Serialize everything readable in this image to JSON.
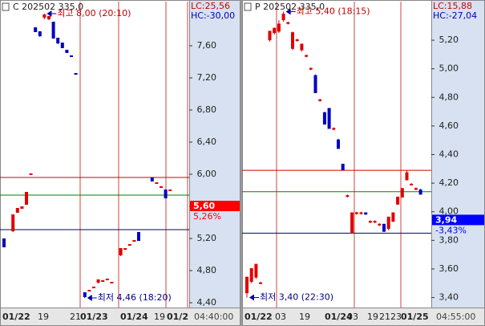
{
  "chart_data": [
    {
      "type": "candlestick",
      "title": "C 202502 335,0",
      "lc": "LC:25,56",
      "hc": "HC:-30,00",
      "up_color": "#e00000",
      "down_color": "#0000c0",
      "open": [
        5.19,
        null,
        5.29,
        5.52,
        5.57,
        5.62,
        6.0,
        7.82,
        7.77,
        7.95,
        7.93,
        7.89,
        7.69,
        7.63,
        7.54,
        7.47,
        7.25,
        null,
        4.52,
        4.55,
        4.59,
        4.65,
        4.67,
        4.69,
        4.65,
        null,
        4.99,
        5.07,
        5.12,
        5.17,
        5.27,
        null,
        null,
        5.95,
        5.89,
        5.84,
        5.8,
        5.8
      ],
      "high": [
        5.2,
        null,
        5.5,
        5.58,
        5.6,
        5.77,
        6.01,
        7.82,
        7.78,
        8.0,
        7.97,
        7.9,
        7.7,
        7.64,
        7.55,
        7.47,
        7.25,
        null,
        4.53,
        4.56,
        4.6,
        4.68,
        4.68,
        4.7,
        4.66,
        null,
        5.07,
        5.08,
        5.13,
        5.17,
        5.28,
        null,
        null,
        5.95,
        5.9,
        5.85,
        5.8,
        5.81
      ],
      "low": [
        5.09,
        null,
        5.28,
        5.52,
        5.57,
        5.62,
        5.99,
        7.77,
        7.71,
        7.93,
        7.92,
        7.69,
        7.62,
        7.57,
        7.51,
        7.46,
        7.24,
        null,
        4.46,
        4.54,
        4.58,
        4.64,
        4.67,
        4.69,
        4.65,
        null,
        4.98,
        5.06,
        5.12,
        5.16,
        5.17,
        null,
        null,
        5.91,
        5.89,
        5.84,
        5.7,
        5.8
      ],
      "close": [
        5.09,
        null,
        5.49,
        5.57,
        5.59,
        5.77,
        6.0,
        7.77,
        7.72,
        7.98,
        7.96,
        7.69,
        7.63,
        7.57,
        7.51,
        7.46,
        7.24,
        null,
        4.47,
        4.55,
        4.59,
        4.68,
        4.67,
        4.69,
        4.65,
        null,
        5.07,
        5.07,
        5.12,
        5.17,
        5.17,
        null,
        null,
        5.91,
        5.89,
        5.84,
        5.7,
        5.8
      ],
      "ylim": [
        4.34,
        8.15
      ],
      "yticks": [
        {
          "value": 4.4,
          "label": "4,40"
        },
        {
          "value": 4.8,
          "label": "4,80"
        },
        {
          "value": 5.2,
          "label": "5,20"
        },
        {
          "value": 5.6,
          "label": "5,60"
        },
        {
          "value": 6.0,
          "label": "6,00"
        },
        {
          "value": 6.4,
          "label": "6,40"
        },
        {
          "value": 6.8,
          "label": "6,80"
        },
        {
          "value": 7.2,
          "label": "7,20"
        },
        {
          "value": 7.6,
          "label": "7,60"
        }
      ],
      "levels": [
        {
          "value": 5.96,
          "color": "#d00000"
        },
        {
          "value": 5.74,
          "color": "#008000"
        },
        {
          "value": 5.31,
          "color": "#000080"
        }
      ],
      "last": {
        "value": 5.6,
        "label": "5,60",
        "color": "#ff0000"
      },
      "change": "5,26%",
      "high_note": "최고 8,00 (20:10)",
      "low_note": "최저 4,46 (18:20)",
      "dates": [
        "01/22",
        "19",
        "21",
        "01/23",
        "01/24",
        "19",
        "01/2"
      ],
      "time": "04:40:00"
    },
    {
      "type": "candlestick",
      "title": "P 202502 335,0",
      "lc": "LC:15,88",
      "hc": "HC:-27,04",
      "up_color": "#e00000",
      "down_color": "#0000c0",
      "open": [
        3.43,
        3.51,
        3.54,
        3.5,
        null,
        5.2,
        5.25,
        5.26,
        5.34,
        5.32,
        5.14,
        5.2,
        5.13,
        5.09,
        5.0,
        4.95,
        4.78,
        4.69,
        4.72,
        4.58,
        4.5,
        4.33,
        4.11,
        3.85,
        3.99,
        3.99,
        3.99,
        3.93,
        3.93,
        3.91,
        3.91,
        3.88,
        3.93,
        4.05,
        4.1,
        4.22,
        4.19,
        4.16,
        4.15
      ],
      "high": [
        3.54,
        3.6,
        3.63,
        3.51,
        null,
        5.26,
        5.29,
        5.34,
        5.4,
        5.33,
        5.26,
        5.21,
        5.17,
        5.1,
        5.01,
        4.96,
        4.79,
        4.7,
        4.72,
        4.59,
        4.51,
        4.33,
        4.12,
        3.99,
        4.0,
        4.0,
        3.99,
        3.94,
        3.94,
        3.92,
        3.91,
        3.96,
        3.99,
        4.1,
        4.16,
        4.29,
        4.2,
        4.17,
        4.16
      ],
      "low": [
        3.4,
        3.5,
        3.53,
        3.5,
        null,
        5.19,
        5.24,
        5.25,
        5.33,
        5.31,
        5.13,
        5.19,
        5.12,
        5.08,
        4.99,
        4.83,
        4.77,
        4.61,
        4.58,
        4.57,
        4.44,
        4.29,
        4.1,
        3.85,
        3.98,
        3.98,
        3.98,
        3.92,
        3.92,
        3.9,
        3.86,
        3.87,
        3.93,
        4.05,
        4.1,
        4.22,
        4.19,
        4.15,
        4.12
      ],
      "close": [
        3.54,
        3.6,
        3.63,
        3.5,
        null,
        5.26,
        5.28,
        5.31,
        5.38,
        5.32,
        5.25,
        5.2,
        5.17,
        5.09,
        5.0,
        4.83,
        4.78,
        4.61,
        4.58,
        4.58,
        4.44,
        4.29,
        4.11,
        3.99,
        3.99,
        3.99,
        3.98,
        3.93,
        3.93,
        3.91,
        3.86,
        3.96,
        3.99,
        4.1,
        4.16,
        4.27,
        4.19,
        4.16,
        4.12
      ],
      "ylim": [
        3.33,
        5.47
      ],
      "yticks": [
        {
          "value": 3.4,
          "label": "3,40"
        },
        {
          "value": 3.6,
          "label": "3,60"
        },
        {
          "value": 3.8,
          "label": "3,80"
        },
        {
          "value": 4.0,
          "label": "4,00"
        },
        {
          "value": 4.2,
          "label": "4,20"
        },
        {
          "value": 4.4,
          "label": "4,40"
        },
        {
          "value": 4.6,
          "label": "4,60"
        },
        {
          "value": 4.8,
          "label": "4,80"
        },
        {
          "value": 5.0,
          "label": "5,00"
        },
        {
          "value": 5.2,
          "label": "5,20"
        }
      ],
      "levels": [
        {
          "value": 4.29,
          "color": "#d00000"
        },
        {
          "value": 4.14,
          "color": "#008000"
        },
        {
          "value": 3.85,
          "color": "#000080"
        }
      ],
      "last": {
        "value": 3.94,
        "label": "3,94",
        "color": "#0000ff"
      },
      "change": "-3,43%",
      "high_note": "최고 5,40 (18:15)",
      "low_note": "최저 3,40 (22:30)",
      "dates": [
        "01/22",
        "03",
        "19",
        "01/24",
        "03",
        "19",
        "21",
        "23",
        "01/25"
      ],
      "time": "04:55:00"
    }
  ]
}
